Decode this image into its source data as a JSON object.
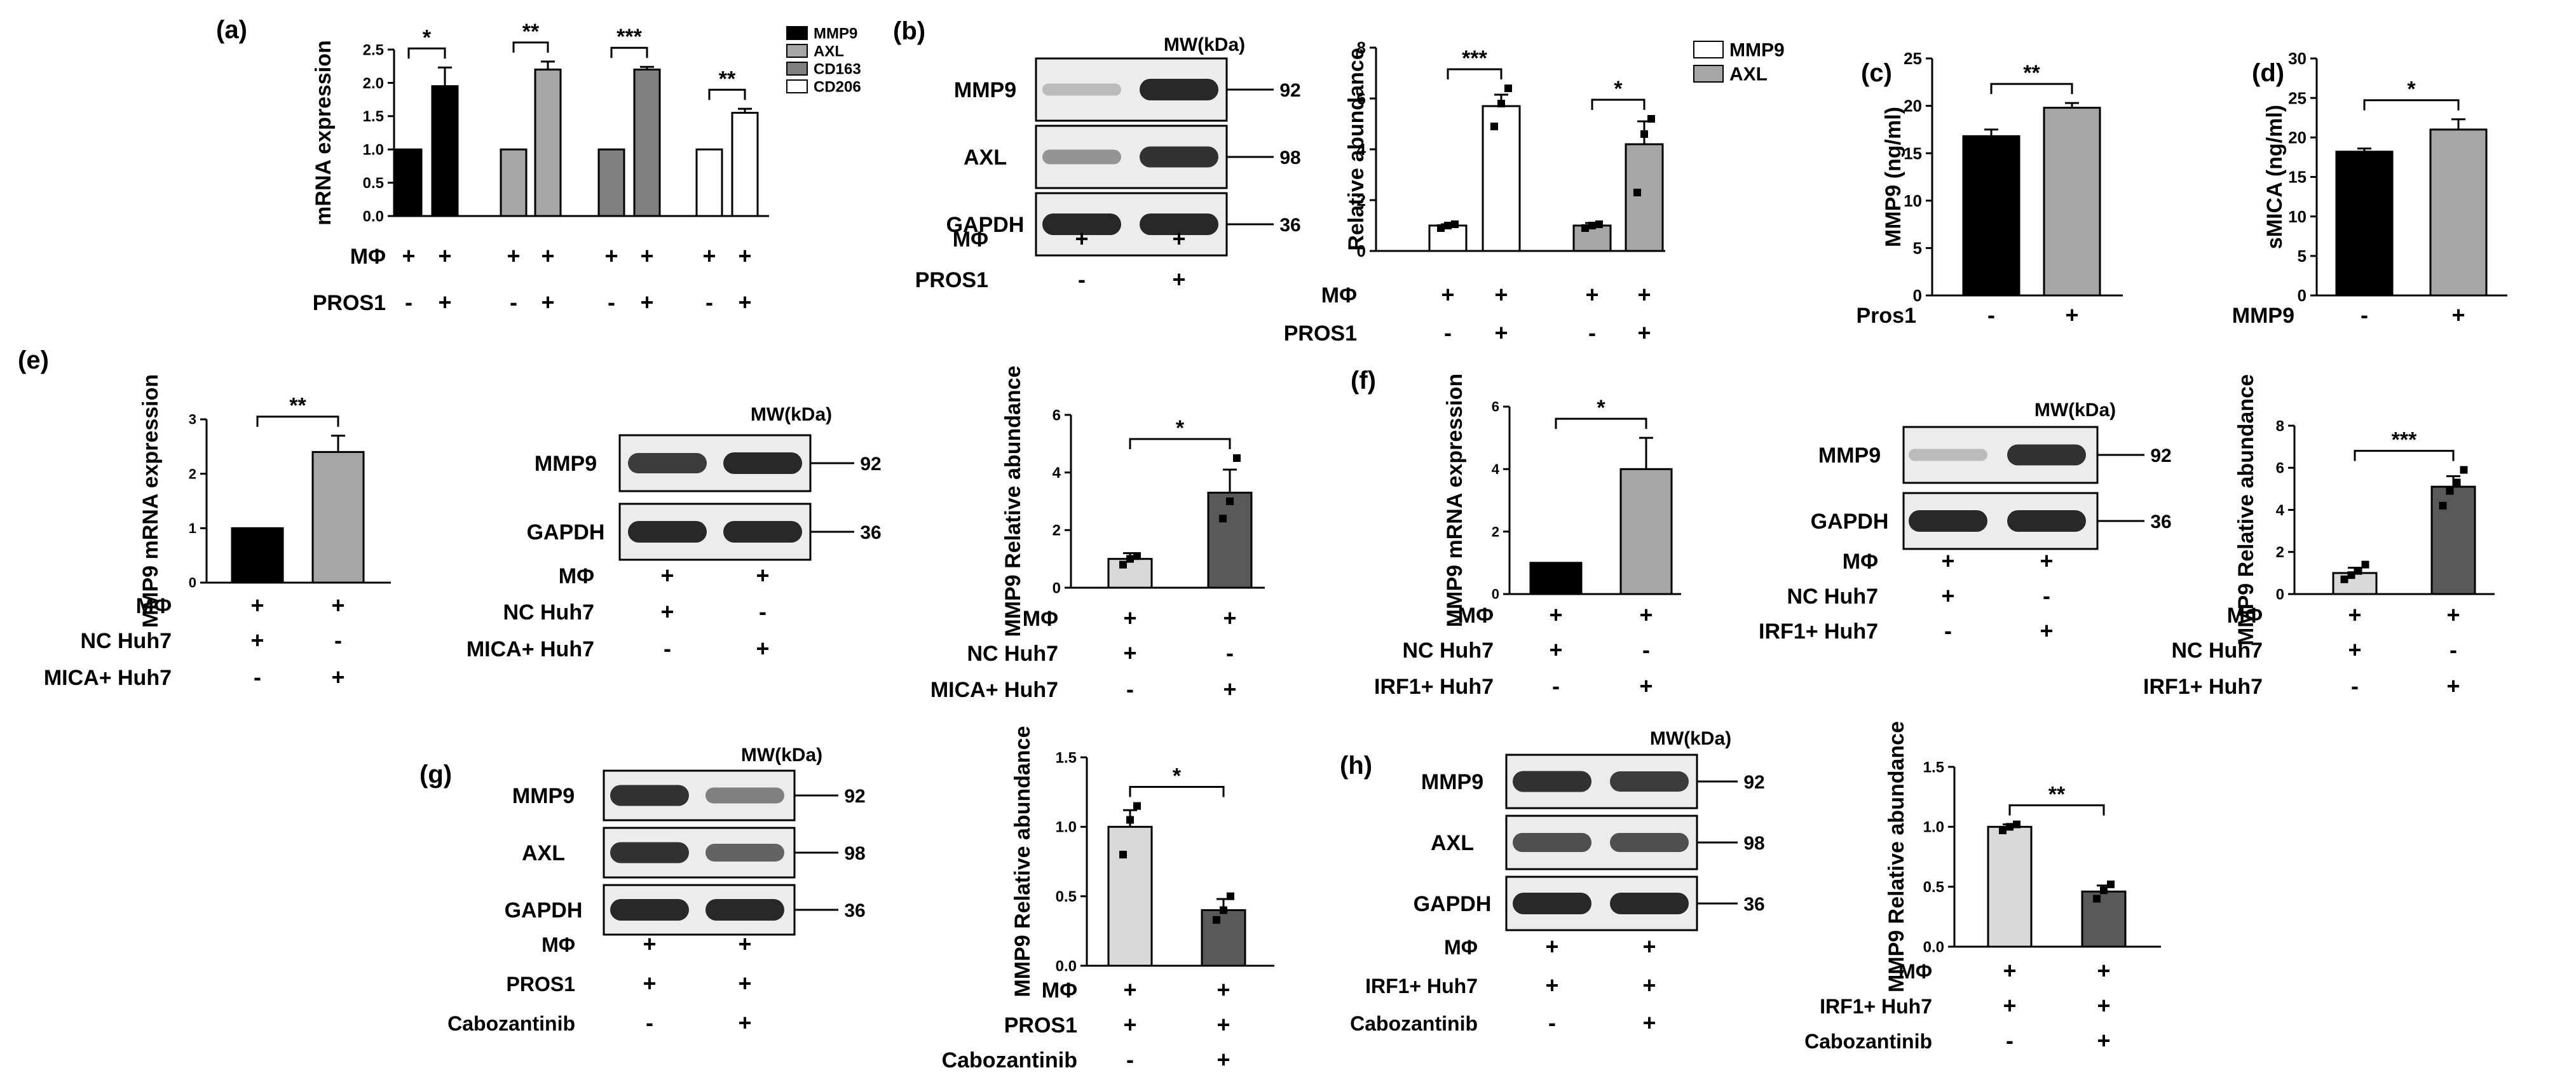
{
  "colors": {
    "black": "#000000",
    "gray": "#a6a6a6",
    "dark_gray": "#808080",
    "white": "#ffffff",
    "light_gray": "#d9d9d9",
    "mid_gray": "#595959",
    "blot_band": "#2b2b2b",
    "blot_bg": "#ececec"
  },
  "mw_label": "MW(kDa)",
  "chart_data": [
    {
      "id": "a",
      "panel": "(a)",
      "type": "bar",
      "ylabel": "mRNA expression",
      "ylim": [
        0,
        2.5
      ],
      "yticks": [
        "0.0",
        "0.5",
        "1.0",
        "1.5",
        "2.0",
        "2.5"
      ],
      "values": [
        1,
        1.95,
        1,
        2.2,
        1,
        2.2,
        1,
        1.55
      ],
      "errors": [
        0,
        0.28,
        0,
        0.12,
        0,
        0.04,
        0,
        0.06
      ],
      "fills": [
        "black",
        "black",
        "gray",
        "gray",
        "dark_gray",
        "dark_gray",
        "white",
        "white"
      ],
      "legend": [
        {
          "label": "MMP9",
          "fill": "black"
        },
        {
          "label": "AXL",
          "fill": "gray"
        },
        {
          "label": "CD163",
          "fill": "dark_gray"
        },
        {
          "label": "CD206",
          "fill": "white"
        }
      ],
      "significance": [
        {
          "pair": [
            0,
            1
          ],
          "label": "*"
        },
        {
          "pair": [
            2,
            3
          ],
          "label": "**"
        },
        {
          "pair": [
            4,
            5
          ],
          "label": "***"
        },
        {
          "pair": [
            6,
            7
          ],
          "label": "**"
        }
      ],
      "conditions": [
        {
          "label": "MΦ",
          "values": [
            "+",
            "+",
            "+",
            "+",
            "+",
            "+",
            "+",
            "+"
          ]
        },
        {
          "label": "PROS1",
          "values": [
            "-",
            "+",
            "-",
            "+",
            "-",
            "+",
            "-",
            "+"
          ]
        }
      ]
    },
    {
      "id": "b",
      "panel": "",
      "type": "bar",
      "ylabel": "Relative abundance",
      "ylim": [
        0,
        8
      ],
      "yticks": [
        "0",
        "2",
        "4",
        "6",
        "8"
      ],
      "values": [
        1,
        5.7,
        1,
        4.2
      ],
      "errors": [
        0.05,
        0.45,
        0.1,
        0.9
      ],
      "points": [
        [
          0.9,
          1.0,
          1.05
        ],
        [
          4.9,
          5.8,
          6.4
        ],
        [
          0.9,
          1.0,
          1.05
        ],
        [
          2.3,
          4.6,
          5.2
        ]
      ],
      "fills": [
        "white",
        "white",
        "gray",
        "gray"
      ],
      "legend": [
        {
          "label": "MMP9",
          "fill": "white"
        },
        {
          "label": "AXL",
          "fill": "gray"
        }
      ],
      "significance": [
        {
          "pair": [
            0,
            1
          ],
          "label": "***"
        },
        {
          "pair": [
            2,
            3
          ],
          "label": "*"
        }
      ],
      "conditions": [
        {
          "label": "MΦ",
          "values": [
            "+",
            "+",
            "+",
            "+"
          ]
        },
        {
          "label": "PROS1",
          "values": [
            "-",
            "+",
            "-",
            "+"
          ]
        }
      ]
    },
    {
      "id": "c",
      "panel": "(c)",
      "type": "bar",
      "ylabel": "MMP9 (ng/ml)",
      "ylim": [
        0,
        25
      ],
      "yticks": [
        "0",
        "5",
        "10",
        "15",
        "20",
        "25"
      ],
      "values": [
        16.8,
        19.8
      ],
      "errors": [
        0.7,
        0.5
      ],
      "fills": [
        "black",
        "gray"
      ],
      "significance": [
        {
          "pair": [
            0,
            1
          ],
          "label": "**"
        }
      ],
      "conditions": [
        {
          "label": "Pros1",
          "values": [
            "-",
            "+"
          ]
        }
      ]
    },
    {
      "id": "d",
      "panel": "(d)",
      "type": "bar",
      "ylabel": "sMICA (ng/ml)",
      "ylim": [
        0,
        30
      ],
      "yticks": [
        "0",
        "5",
        "10",
        "15",
        "20",
        "25",
        "30"
      ],
      "values": [
        18.2,
        21.0
      ],
      "errors": [
        0.4,
        1.3
      ],
      "fills": [
        "black",
        "gray"
      ],
      "significance": [
        {
          "pair": [
            0,
            1
          ],
          "label": "*"
        }
      ],
      "conditions": [
        {
          "label": "MMP9",
          "values": [
            "-",
            "+"
          ]
        }
      ]
    },
    {
      "id": "e1",
      "panel": "(e)",
      "type": "bar",
      "ylabel": "MMP9 mRNA expression",
      "ylim": [
        0,
        3
      ],
      "yticks": [
        "0",
        "1",
        "2",
        "3"
      ],
      "values": [
        1,
        2.4
      ],
      "errors": [
        0,
        0.3
      ],
      "fills": [
        "black",
        "gray"
      ],
      "significance": [
        {
          "pair": [
            0,
            1
          ],
          "label": "**"
        }
      ],
      "conditions": [
        {
          "label": "MΦ",
          "values": [
            "+",
            "+"
          ]
        },
        {
          "label": "NC Huh7",
          "values": [
            "+",
            "-"
          ]
        },
        {
          "label": "MICA+ Huh7",
          "values": [
            "-",
            "+"
          ]
        }
      ]
    },
    {
      "id": "e2",
      "panel": "",
      "type": "bar",
      "ylabel": "MMP9 Relative abundance",
      "ylim": [
        0,
        6
      ],
      "yticks": [
        "0",
        "2",
        "4",
        "6"
      ],
      "values": [
        1.0,
        3.3
      ],
      "errors": [
        0.2,
        0.8
      ],
      "points": [
        [
          0.8,
          1.0,
          1.1
        ],
        [
          2.4,
          3.0,
          4.5
        ]
      ],
      "fills": [
        "light_gray",
        "mid_gray"
      ],
      "significance": [
        {
          "pair": [
            0,
            1
          ],
          "label": "*"
        }
      ],
      "conditions": [
        {
          "label": "MΦ",
          "values": [
            "+",
            "+"
          ]
        },
        {
          "label": "NC Huh7",
          "values": [
            "+",
            "-"
          ]
        },
        {
          "label": "MICA+ Huh7",
          "values": [
            "-",
            "+"
          ]
        }
      ]
    },
    {
      "id": "f1",
      "panel": "(f)",
      "type": "bar",
      "ylabel": "MMP9 mRNA expression",
      "ylim": [
        0,
        6
      ],
      "yticks": [
        "0",
        "2",
        "4",
        "6"
      ],
      "values": [
        1,
        4.0
      ],
      "errors": [
        0,
        1.0
      ],
      "fills": [
        "black",
        "gray"
      ],
      "significance": [
        {
          "pair": [
            0,
            1
          ],
          "label": "*"
        }
      ],
      "conditions": [
        {
          "label": "MΦ",
          "values": [
            "+",
            "+"
          ]
        },
        {
          "label": "NC Huh7",
          "values": [
            "+",
            "-"
          ]
        },
        {
          "label": "IRF1+ Huh7",
          "values": [
            "-",
            "+"
          ]
        }
      ]
    },
    {
      "id": "f2",
      "panel": "",
      "type": "bar",
      "ylabel": "MMP9 Relative abundance",
      "ylim": [
        0,
        8
      ],
      "yticks": [
        "0",
        "2",
        "4",
        "6",
        "8"
      ],
      "values": [
        1.0,
        5.1
      ],
      "errors": [
        0.25,
        0.5
      ],
      "points": [
        [
          0.7,
          0.9,
          1.1,
          1.4
        ],
        [
          4.2,
          4.9,
          5.3,
          5.9
        ]
      ],
      "fills": [
        "light_gray",
        "mid_gray"
      ],
      "significance": [
        {
          "pair": [
            0,
            1
          ],
          "label": "***"
        }
      ],
      "conditions": [
        {
          "label": "MΦ",
          "values": [
            "+",
            "+"
          ]
        },
        {
          "label": "NC Huh7",
          "values": [
            "+",
            "-"
          ]
        },
        {
          "label": "IRF1+ Huh7",
          "values": [
            "-",
            "+"
          ]
        }
      ]
    },
    {
      "id": "g",
      "panel": "",
      "type": "bar",
      "ylabel": "MMP9 Relative abundance",
      "ylim": [
        0,
        1.5
      ],
      "yticks": [
        "0.0",
        "0.5",
        "1.0",
        "1.5"
      ],
      "values": [
        1.0,
        0.4
      ],
      "errors": [
        0.12,
        0.08
      ],
      "points": [
        [
          0.8,
          1.05,
          1.15
        ],
        [
          0.33,
          0.4,
          0.5
        ]
      ],
      "fills": [
        "light_gray",
        "mid_gray"
      ],
      "significance": [
        {
          "pair": [
            0,
            1
          ],
          "label": "*"
        }
      ],
      "conditions": [
        {
          "label": "MΦ",
          "values": [
            "+",
            "+"
          ]
        },
        {
          "label": "PROS1",
          "values": [
            "+",
            "+"
          ]
        },
        {
          "label": "Cabozantinib",
          "values": [
            "-",
            "+"
          ]
        }
      ]
    },
    {
      "id": "h",
      "panel": "",
      "type": "bar",
      "ylabel": "MMP9 Relative abundance",
      "ylim": [
        0,
        1.5
      ],
      "yticks": [
        "0.0",
        "0.5",
        "1.0",
        "1.5"
      ],
      "values": [
        1.0,
        0.46
      ],
      "errors": [
        0.02,
        0.05
      ],
      "points": [
        [
          0.97,
          1.0,
          1.02
        ],
        [
          0.4,
          0.47,
          0.52
        ]
      ],
      "fills": [
        "light_gray",
        "mid_gray"
      ],
      "significance": [
        {
          "pair": [
            0,
            1
          ],
          "label": "**"
        }
      ],
      "conditions": [
        {
          "label": "MΦ",
          "values": [
            "+",
            "+"
          ]
        },
        {
          "label": "IRF1+ Huh7",
          "values": [
            "+",
            "+"
          ]
        },
        {
          "label": "Cabozantinib",
          "values": [
            "-",
            "+"
          ]
        }
      ]
    }
  ],
  "blots": [
    {
      "id": "b",
      "panel": "(b)",
      "rows": [
        {
          "protein": "MMP9",
          "mw": "92",
          "bands": [
            0.25,
            1.0
          ]
        },
        {
          "protein": "AXL",
          "mw": "98",
          "bands": [
            0.45,
            0.95
          ]
        },
        {
          "protein": "GAPDH",
          "mw": "36",
          "bands": [
            1.0,
            1.0
          ]
        }
      ],
      "conditions": [
        {
          "label": "MΦ",
          "values": [
            "+",
            "+"
          ]
        },
        {
          "label": "PROS1",
          "values": [
            "-",
            "+"
          ]
        }
      ]
    },
    {
      "id": "e",
      "panel": "",
      "rows": [
        {
          "protein": "MMP9",
          "mw": "92",
          "bands": [
            0.9,
            1.0
          ]
        },
        {
          "protein": "GAPDH",
          "mw": "36",
          "bands": [
            1.0,
            1.0
          ]
        }
      ],
      "conditions": [
        {
          "label": "MΦ",
          "values": [
            "+",
            "+"
          ]
        },
        {
          "label": "NC Huh7",
          "values": [
            "+",
            "-"
          ]
        },
        {
          "label": "MICA+ Huh7",
          "values": [
            "-",
            "+"
          ]
        }
      ]
    },
    {
      "id": "f",
      "panel": "",
      "rows": [
        {
          "protein": "MMP9",
          "mw": "92",
          "bands": [
            0.25,
            0.95
          ]
        },
        {
          "protein": "GAPDH",
          "mw": "36",
          "bands": [
            1.0,
            1.0
          ]
        }
      ],
      "conditions": [
        {
          "label": "MΦ",
          "values": [
            "+",
            "+"
          ]
        },
        {
          "label": "NC Huh7",
          "values": [
            "+",
            "-"
          ]
        },
        {
          "label": "IRF1+ Huh7",
          "values": [
            "-",
            "+"
          ]
        }
      ]
    },
    {
      "id": "g",
      "panel": "(g)",
      "rows": [
        {
          "protein": "MMP9",
          "mw": "92",
          "bands": [
            0.95,
            0.55
          ]
        },
        {
          "protein": "AXL",
          "mw": "98",
          "bands": [
            0.95,
            0.7
          ]
        },
        {
          "protein": "GAPDH",
          "mw": "36",
          "bands": [
            1.0,
            1.0
          ]
        }
      ],
      "conditions": [
        {
          "label": "MΦ",
          "values": [
            "+",
            "+"
          ]
        },
        {
          "label": "PROS1",
          "values": [
            "+",
            "+"
          ]
        },
        {
          "label": "Cabozantinib",
          "values": [
            "-",
            "+"
          ]
        }
      ]
    },
    {
      "id": "h",
      "panel": "(h)",
      "rows": [
        {
          "protein": "MMP9",
          "mw": "92",
          "bands": [
            0.95,
            0.9
          ]
        },
        {
          "protein": "AXL",
          "mw": "98",
          "bands": [
            0.8,
            0.8
          ]
        },
        {
          "protein": "GAPDH",
          "mw": "36",
          "bands": [
            1.0,
            1.0
          ]
        }
      ],
      "conditions": [
        {
          "label": "MΦ",
          "values": [
            "+",
            "+"
          ]
        },
        {
          "label": "IRF1+ Huh7",
          "values": [
            "+",
            "+"
          ]
        },
        {
          "label": "Cabozantinib",
          "values": [
            "-",
            "+"
          ]
        }
      ]
    }
  ]
}
